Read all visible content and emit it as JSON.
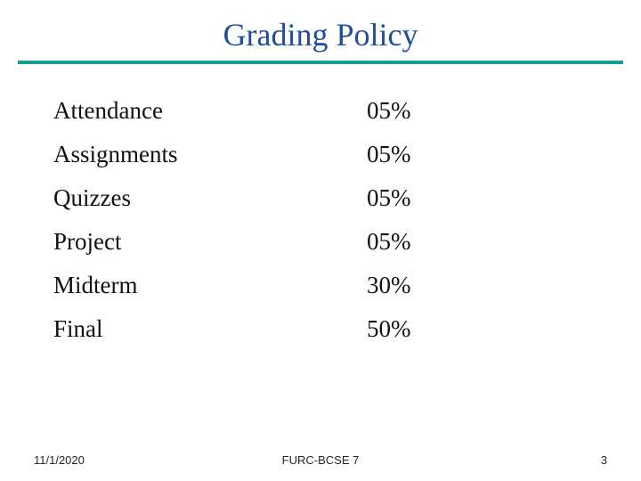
{
  "title": "Grading Policy",
  "title_color": "#1f4e9c",
  "rule_color": "#1a9e8f",
  "title_fontsize": 36,
  "body_fontsize": 27,
  "body_color": "#111111",
  "background_color": "#ffffff",
  "grading": {
    "rows": [
      {
        "label": "Attendance",
        "value": "05%"
      },
      {
        "label": "Assignments",
        "value": "05%"
      },
      {
        "label": "Quizzes",
        "value": "05%"
      },
      {
        "label": "Project",
        "value": "05%"
      },
      {
        "label": "Midterm",
        "value": "30%"
      },
      {
        "label": "Final",
        "value": "50%"
      }
    ]
  },
  "footer": {
    "date": "11/1/2020",
    "center": "FURC-BCSE 7",
    "page": "3",
    "fontsize": 13,
    "color": "#242424"
  }
}
